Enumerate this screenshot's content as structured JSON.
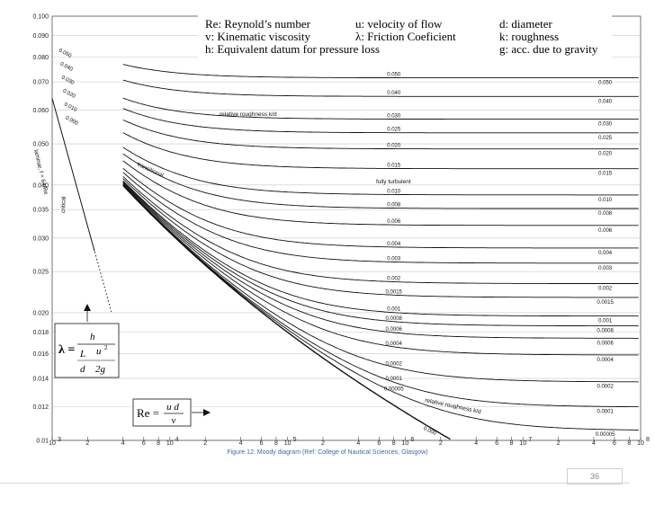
{
  "chart_data": {
    "type": "line",
    "title": "",
    "xlabel": "",
    "ylabel": "",
    "xscale": "log",
    "yscale": "log",
    "xlim": [
      1000,
      100000000
    ],
    "ylim": [
      0.01,
      0.1
    ],
    "y_ticks": [
      "0.100",
      "0.090",
      "0.080",
      "0.070",
      "0.060",
      "0.050",
      "0.040",
      "0.035",
      "0.030",
      "0.025",
      "0.020",
      "0.018",
      "0.016",
      "0.014",
      "0.012",
      "0.01"
    ],
    "x_tick_labels": [
      {
        "v": 1000,
        "t": "10",
        "e": "3"
      },
      {
        "v": 2000,
        "t": "2"
      },
      {
        "v": 4000,
        "t": "4"
      },
      {
        "v": 6000,
        "t": "6"
      },
      {
        "v": 8000,
        "t": "8"
      },
      {
        "v": 10000,
        "t": "10",
        "e": "4"
      },
      {
        "v": 20000,
        "t": "2"
      },
      {
        "v": 40000,
        "t": "4"
      },
      {
        "v": 60000,
        "t": "6"
      },
      {
        "v": 80000,
        "t": "8"
      },
      {
        "v": 100000,
        "t": "10",
        "e": "5"
      },
      {
        "v": 200000,
        "t": "2"
      },
      {
        "v": 400000,
        "t": "4"
      },
      {
        "v": 600000,
        "t": "6"
      },
      {
        "v": 800000,
        "t": "8"
      },
      {
        "v": 1000000,
        "t": "10",
        "e": "6"
      },
      {
        "v": 2000000,
        "t": "2"
      },
      {
        "v": 4000000,
        "t": "4"
      },
      {
        "v": 6000000,
        "t": "6"
      },
      {
        "v": 8000000,
        "t": "8"
      },
      {
        "v": 10000000,
        "t": "10",
        "e": "7"
      },
      {
        "v": 20000000,
        "t": "2"
      },
      {
        "v": 40000000,
        "t": "4"
      },
      {
        "v": 60000000,
        "t": "6"
      },
      {
        "v": 80000000,
        "t": "8"
      },
      {
        "v": 100000000,
        "t": "10",
        "e": "8"
      }
    ],
    "roughness": [
      {
        "k": "0.050",
        "v": 0.05,
        "mid_label": "0.050",
        "right_label": "0.050",
        "left_label": "0.050"
      },
      {
        "k": "0.040",
        "v": 0.04,
        "mid_label": "0.040",
        "right_label": "0.040",
        "left_label": "0.040"
      },
      {
        "k": "0.030",
        "v": 0.03,
        "mid_label": "0.030",
        "right_label": "0.030",
        "left_label": "0.030"
      },
      {
        "k": "0.025",
        "v": 0.025,
        "mid_label": "0.025",
        "right_label": "0.025",
        "left_label": "0.020"
      },
      {
        "k": "0.020",
        "v": 0.02,
        "mid_label": "0.020",
        "right_label": "0.020",
        "left_label": "0.010"
      },
      {
        "k": "0.015",
        "v": 0.015,
        "mid_label": "0.015",
        "right_label": "0.015",
        "left_label": "0.000"
      },
      {
        "k": "0.010",
        "v": 0.01,
        "mid_label": "0.010",
        "right_label": "0.010"
      },
      {
        "k": "0.008",
        "v": 0.008,
        "mid_label": "0.008",
        "right_label": "0.008"
      },
      {
        "k": "0.006",
        "v": 0.006,
        "mid_label": "0.006",
        "right_label": "0.006"
      },
      {
        "k": "0.004",
        "v": 0.004,
        "mid_label": "0.004",
        "right_label": "0.004"
      },
      {
        "k": "0.003",
        "v": 0.003,
        "mid_label": "0.003",
        "right_label": "0.003"
      },
      {
        "k": "0.002",
        "v": 0.002,
        "mid_label": "0.002",
        "right_label": "0.002"
      },
      {
        "k": "0.0015",
        "v": 0.0015,
        "mid_label": "0.0015",
        "right_label": "0.0015"
      },
      {
        "k": "0.001",
        "v": 0.001,
        "mid_label": "0.001",
        "right_label": "0.001"
      },
      {
        "k": "0.0008",
        "v": 0.0008,
        "mid_label": "0.0008",
        "right_label": "0.0008"
      },
      {
        "k": "0.0006",
        "v": 0.0006,
        "mid_label": "0.0006",
        "right_label": "0.0006"
      },
      {
        "k": "0.0004",
        "v": 0.0004,
        "mid_label": "0.0004",
        "right_label": "0.0004"
      },
      {
        "k": "0.0002",
        "v": 0.0002,
        "mid_label": "0.0002",
        "right_label": "0.0002"
      },
      {
        "k": "0.0001",
        "v": 0.0001,
        "mid_label": "0.0001",
        "right_label": "0.0001"
      },
      {
        "k": "0.00005",
        "v": 5e-05,
        "mid_label": "0.00005",
        "right_label": "0.00005"
      },
      {
        "k": "0.000",
        "v": 0,
        "mid_label": "0.000"
      }
    ],
    "annotations": {
      "relative_roughness_mid": "relative roughness k/d",
      "relative_roughness_low": "relative roughness k/d",
      "transitional": "transitional",
      "fully_turbulent": "fully turbulent",
      "laminar": "laminar, f = 64/Re",
      "critical": "critical"
    },
    "legend": [
      [
        "Re: Reynold’s number",
        "u: velocity of flow",
        "d: diameter"
      ],
      [
        "v: Kinematic viscosity",
        "λ: Friction Coeficient",
        "k: roughness"
      ],
      [
        "h: Equivalent datum for pressure loss",
        "",
        "g: acc. due to gravity"
      ]
    ],
    "formula_lambda": {
      "lhs": "λ =",
      "num": "h",
      "den_l": "L",
      "den_u": "u",
      "den_d": "d",
      "den_2g": "2g",
      "sup": "2"
    },
    "formula_re": {
      "lhs": "Re =",
      "num": "u d",
      "den": "ν"
    }
  },
  "caption": "Figure 12: Moody diagram (Ref: College of Nautical Sciences, Glasgow)",
  "page_number": "36"
}
